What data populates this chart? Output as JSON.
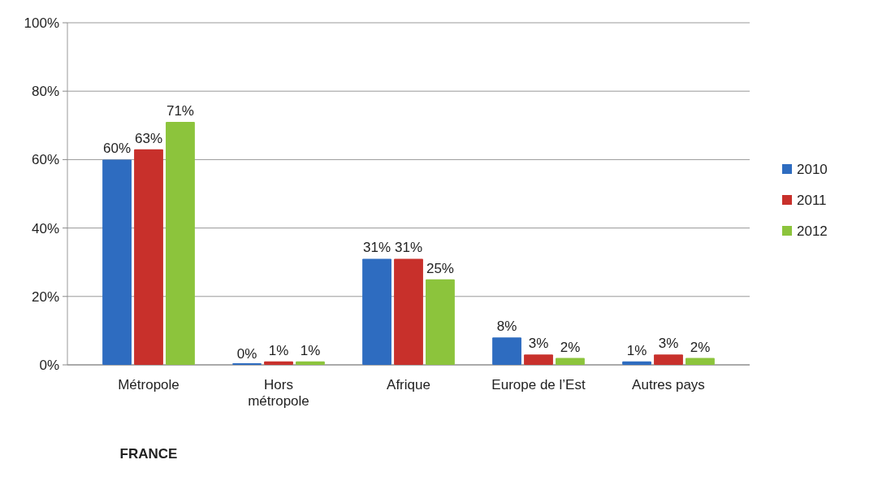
{
  "chart_data": {
    "type": "bar",
    "categories": [
      "Métropole",
      "Hors\nmétropole",
      "Afrique",
      "Europe de l’Est",
      "Autres pays"
    ],
    "series": [
      {
        "name": "2010",
        "color": "#2e6cc0",
        "values": [
          60,
          0,
          31,
          8,
          1
        ],
        "value_labels": [
          "60%",
          "0%",
          "31%",
          "8%",
          "1%"
        ]
      },
      {
        "name": "2011",
        "color": "#c8302b",
        "values": [
          63,
          1,
          31,
          3,
          3
        ],
        "value_labels": [
          "63%",
          "1%",
          "31%",
          "3%",
          "3%"
        ]
      },
      {
        "name": "2012",
        "color": "#8cc43c",
        "values": [
          71,
          1,
          25,
          2,
          2
        ],
        "value_labels": [
          "71%",
          "1%",
          "25%",
          "2%",
          "2%"
        ]
      }
    ],
    "ylim": [
      0,
      100
    ],
    "yticks": [
      {
        "value": 0,
        "label": "0%"
      },
      {
        "value": 20,
        "label": "20%"
      },
      {
        "value": 40,
        "label": "40%"
      },
      {
        "value": 60,
        "label": "60%"
      },
      {
        "value": 80,
        "label": "80%"
      },
      {
        "value": 100,
        "label": "100%"
      }
    ],
    "grid": "y",
    "legend": "right",
    "annotations": [
      "FRANCE"
    ]
  }
}
